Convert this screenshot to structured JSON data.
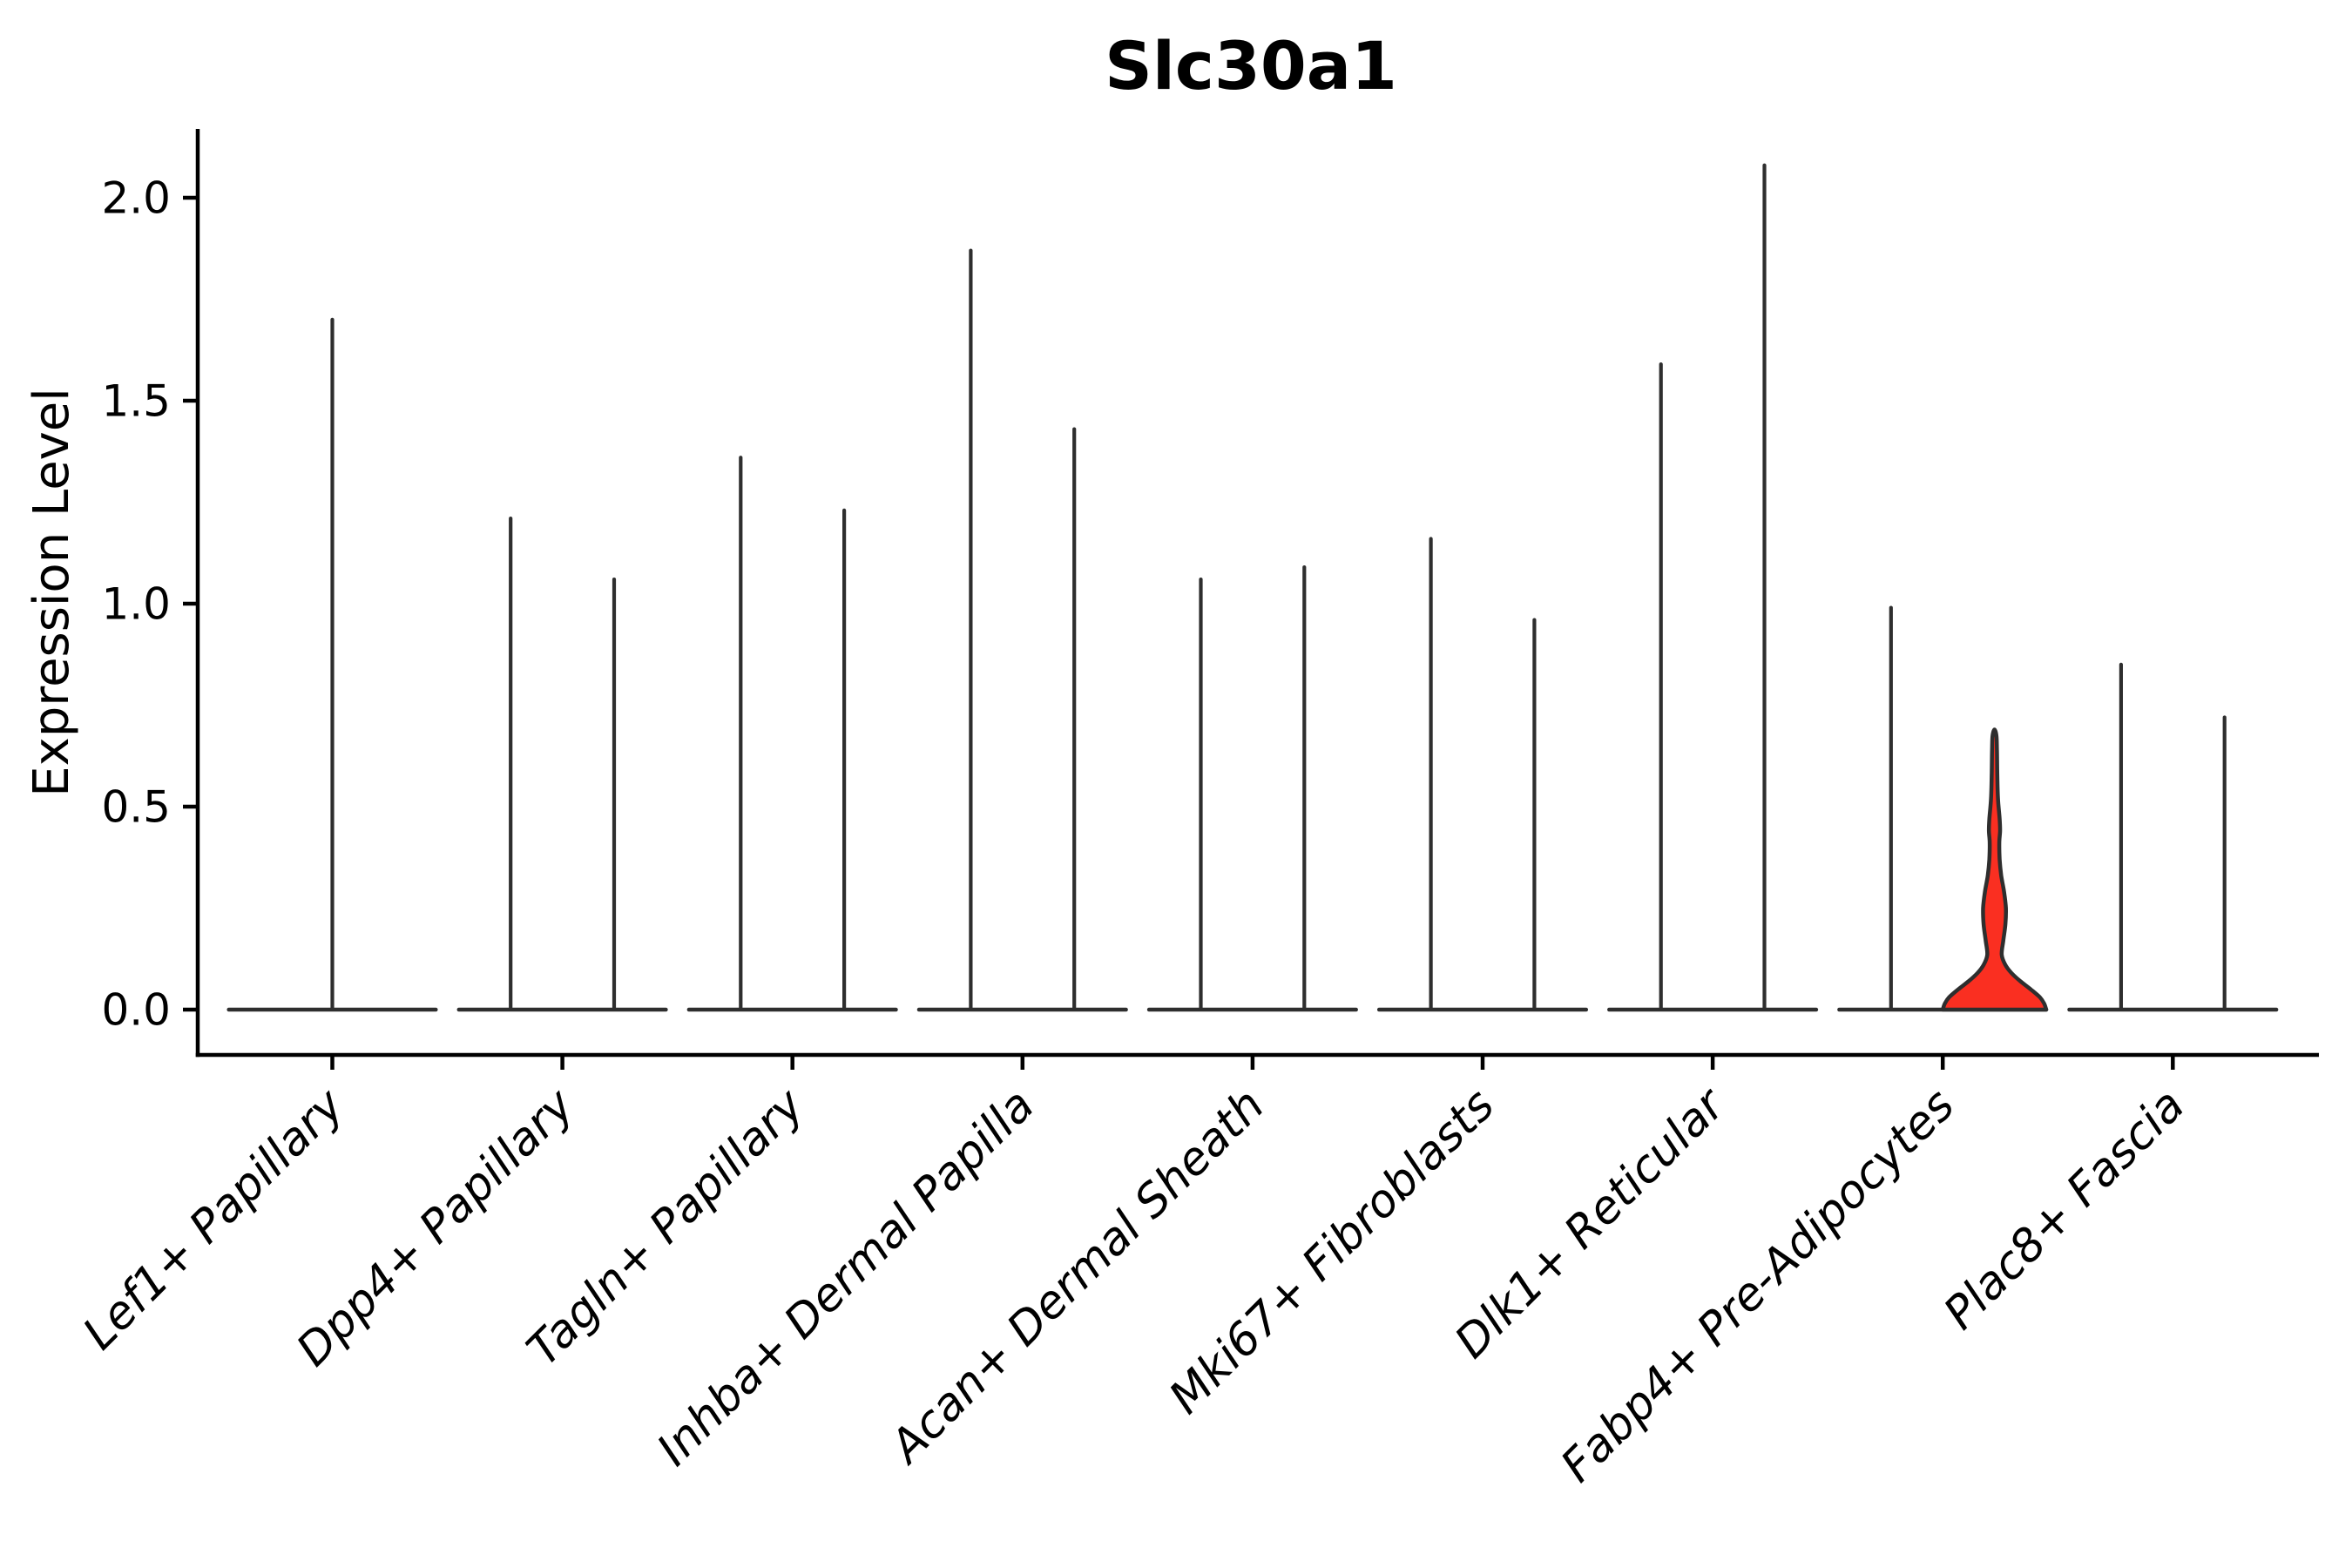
{
  "chart_data": {
    "type": "violin",
    "title": "Slc30a1",
    "ylabel": "Expression Level",
    "xlabel": "",
    "ylim": [
      0,
      2.17
    ],
    "yticks": [
      0.0,
      0.5,
      1.0,
      1.5,
      2.0
    ],
    "ytick_labels": [
      "0.0",
      "0.5",
      "1.0",
      "1.5",
      "2.0"
    ],
    "grid": false,
    "legend": "none",
    "categories": [
      "Lef1+ Papillary",
      "Dpp4+ Papillary",
      "Tagln+ Papillary",
      "Inhba+ Dermal Papilla",
      "Acan+ Dermal Sheath",
      "Mki67+ Fibroblasts",
      "Dlk1+ Reticular",
      "Fabp4+ Pre-Adipocytes",
      "Plac8+ Fascia"
    ],
    "violins": [
      {
        "category": "Lef1+ Papillary",
        "peaks": [
          1.7
        ]
      },
      {
        "category": "Dpp4+ Papillary",
        "peaks": [
          1.21,
          1.06
        ]
      },
      {
        "category": "Tagln+ Papillary",
        "peaks": [
          1.36,
          1.23
        ]
      },
      {
        "category": "Inhba+ Dermal Papilla",
        "peaks": [
          1.87,
          1.43
        ]
      },
      {
        "category": "Acan+ Dermal Sheath",
        "peaks": [
          1.06,
          1.09
        ]
      },
      {
        "category": "Mki67+ Fibroblasts",
        "peaks": [
          1.16,
          0.96
        ]
      },
      {
        "category": "Dlk1+ Reticular",
        "peaks": [
          1.59,
          2.08
        ]
      },
      {
        "category": "Fabp4+ Pre-Adipocytes",
        "peaks": [
          0.99,
          0.69
        ],
        "highlight": [
          false,
          true
        ]
      },
      {
        "category": "Plac8+ Fascia",
        "peaks": [
          0.85,
          0.72
        ]
      }
    ],
    "highlight_violin": {
      "category": "Fabp4+ Pre-Adipocytes",
      "position": "right",
      "peak": 0.69,
      "profile": [
        [
          0.0,
          1.0
        ],
        [
          0.015,
          0.96
        ],
        [
          0.03,
          0.88
        ],
        [
          0.05,
          0.7
        ],
        [
          0.07,
          0.5
        ],
        [
          0.09,
          0.33
        ],
        [
          0.11,
          0.21
        ],
        [
          0.135,
          0.14
        ],
        [
          0.17,
          0.17
        ],
        [
          0.21,
          0.21
        ],
        [
          0.25,
          0.22
        ],
        [
          0.29,
          0.185
        ],
        [
          0.33,
          0.13
        ],
        [
          0.37,
          0.1
        ],
        [
          0.41,
          0.092
        ],
        [
          0.44,
          0.108
        ],
        [
          0.47,
          0.1
        ],
        [
          0.52,
          0.067
        ],
        [
          0.58,
          0.054
        ],
        [
          0.64,
          0.047
        ],
        [
          0.675,
          0.037
        ],
        [
          0.69,
          0.0
        ]
      ]
    },
    "colors": {
      "violin_stroke": "#2e2e2e",
      "highlight_fill": "#fa2f21",
      "axis": "#000000",
      "background": "#ffffff"
    }
  }
}
